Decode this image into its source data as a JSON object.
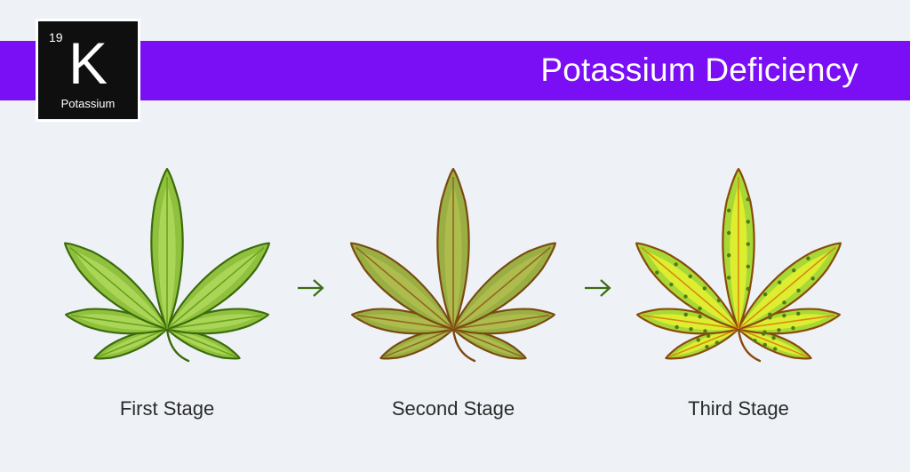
{
  "title": "Potassium Deficiency",
  "element": {
    "number": "19",
    "symbol": "K",
    "name": "Potassium"
  },
  "stages": [
    {
      "label": "First Stage",
      "colors": {
        "fill": "#8fc13e",
        "fill_inner": "#b0d85a",
        "vein": "#6aa21f",
        "outline": "#3c6b0c"
      }
    },
    {
      "label": "Second Stage",
      "colors": {
        "fill": "#99af43",
        "fill_inner": "#b2bd4f",
        "vein": "#8d6a21",
        "outline": "#7a4a10"
      }
    },
    {
      "label": "Third Stage",
      "colors": {
        "fill": "#a8d836",
        "fill_inner": "#e6f230",
        "vein": "#d88a10",
        "outline": "#8a4a0a",
        "spot": "#4f7a16"
      }
    }
  ],
  "arrow_icon": "right-arrow-icon"
}
